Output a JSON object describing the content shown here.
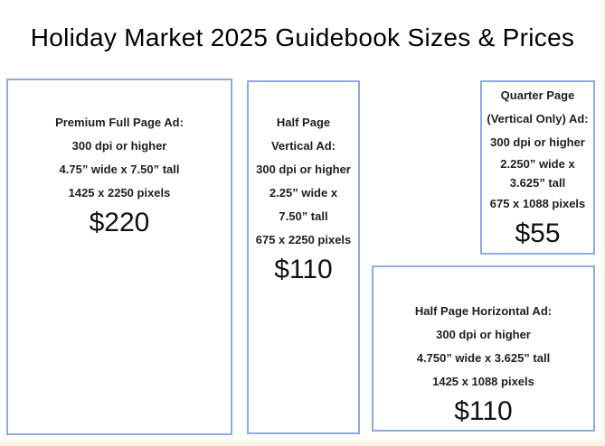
{
  "page": {
    "title": "Holiday Market 2025 Guidebook Sizes & Prices",
    "background_color": "#ffffff",
    "edge_color": "#faf6e2",
    "box_border_color": "#8faadc",
    "text_color": "#1f1f1f"
  },
  "boxes": [
    {
      "name": "Premium Full Page Ad",
      "lines": [
        "Premium Full Page Ad:",
        "300 dpi or higher",
        "4.75” wide x 7.50” tall",
        "1425 x 2250 pixels"
      ],
      "price": "$220"
    },
    {
      "name": "Half Page Vertical Ad",
      "lines": [
        "Half Page",
        "Vertical Ad:",
        "300 dpi or higher",
        "2.25” wide x",
        "7.50” tall",
        "675 x 2250 pixels"
      ],
      "price": "$110"
    },
    {
      "name": "Quarter Page (Vertical Only) Ad",
      "lines": [
        "Quarter Page",
        "(Vertical Only) Ad:",
        "300 dpi or higher",
        "2.250” wide x",
        "3.625” tall",
        "675 x 1088 pixels"
      ],
      "price": "$55"
    },
    {
      "name": "Half Page Horizontal Ad",
      "lines": [
        "Half Page Horizontal Ad:",
        "300 dpi or higher",
        "4.750” wide x 3.625” tall",
        "1425 x 1088 pixels"
      ],
      "price": "$110"
    }
  ]
}
